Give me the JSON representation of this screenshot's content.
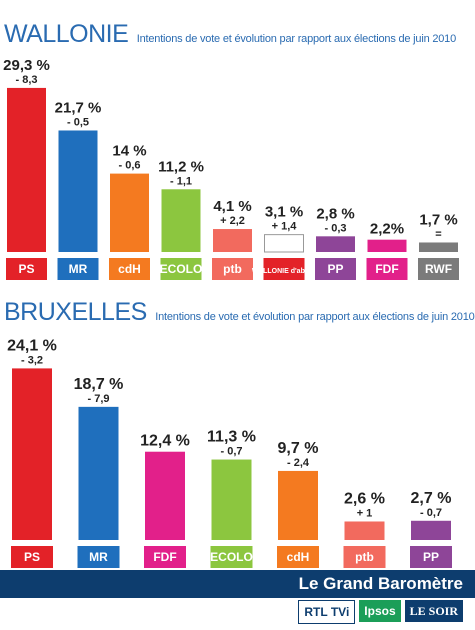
{
  "chart_data": [
    {
      "type": "bar",
      "title": "WALLONIE",
      "subtitle": "Intentions de vote et évolution par rapport aux élections de juin 2010",
      "categories": [
        "PS",
        "MR",
        "cdH",
        "ECOLO",
        "ptb",
        "WALLONIE d'abord",
        "PP",
        "FDF",
        "RWF"
      ],
      "value_labels": [
        "29,3 %",
        "21,7 %",
        "14 %",
        "11,2 %",
        "4,1 %",
        "3,1 %",
        "2,8 %",
        "2,2%",
        "1,7 %"
      ],
      "values": [
        29.3,
        21.7,
        14.0,
        11.2,
        4.1,
        3.1,
        2.8,
        2.2,
        1.7
      ],
      "change_labels": [
        "- 8,3",
        "- 0,5",
        "- 0,6",
        "- 1,1",
        "+ 2,2",
        "+ 1,4",
        "- 0,3",
        "",
        "="
      ],
      "colors": [
        "#e32228",
        "#1f6fbd",
        "#f47a20",
        "#8cc63f",
        "#f26a5e",
        "#ffffff",
        "#8e4598",
        "#e2208a",
        "#7b7b7b"
      ],
      "ylim": [
        0,
        30
      ]
    },
    {
      "type": "bar",
      "title": "BRUXELLES",
      "subtitle": "Intentions de vote et évolution par rapport aux élections de juin 2010",
      "categories": [
        "PS",
        "MR",
        "FDF",
        "ECOLO",
        "cdH",
        "ptb",
        "PP"
      ],
      "value_labels": [
        "24,1 %",
        "18,7 %",
        "12,4 %",
        "11,3 %",
        "9,7 %",
        "2,6 %",
        "2,7 %"
      ],
      "values": [
        24.1,
        18.7,
        12.4,
        11.3,
        9.7,
        2.6,
        2.7
      ],
      "change_labels": [
        "- 3,2",
        "- 7,9",
        "",
        "- 0,7",
        "- 2,4",
        "+ 1",
        "- 0,7"
      ],
      "colors": [
        "#e32228",
        "#1f6fbd",
        "#e2208a",
        "#8cc63f",
        "#f47a20",
        "#f26a5e",
        "#8e4598"
      ],
      "ylim": [
        0,
        25
      ]
    }
  ],
  "footer": {
    "title": "Le Grand Baromètre",
    "logos": [
      "RTL TVi",
      "Ipsos",
      "LE SOIR"
    ]
  }
}
